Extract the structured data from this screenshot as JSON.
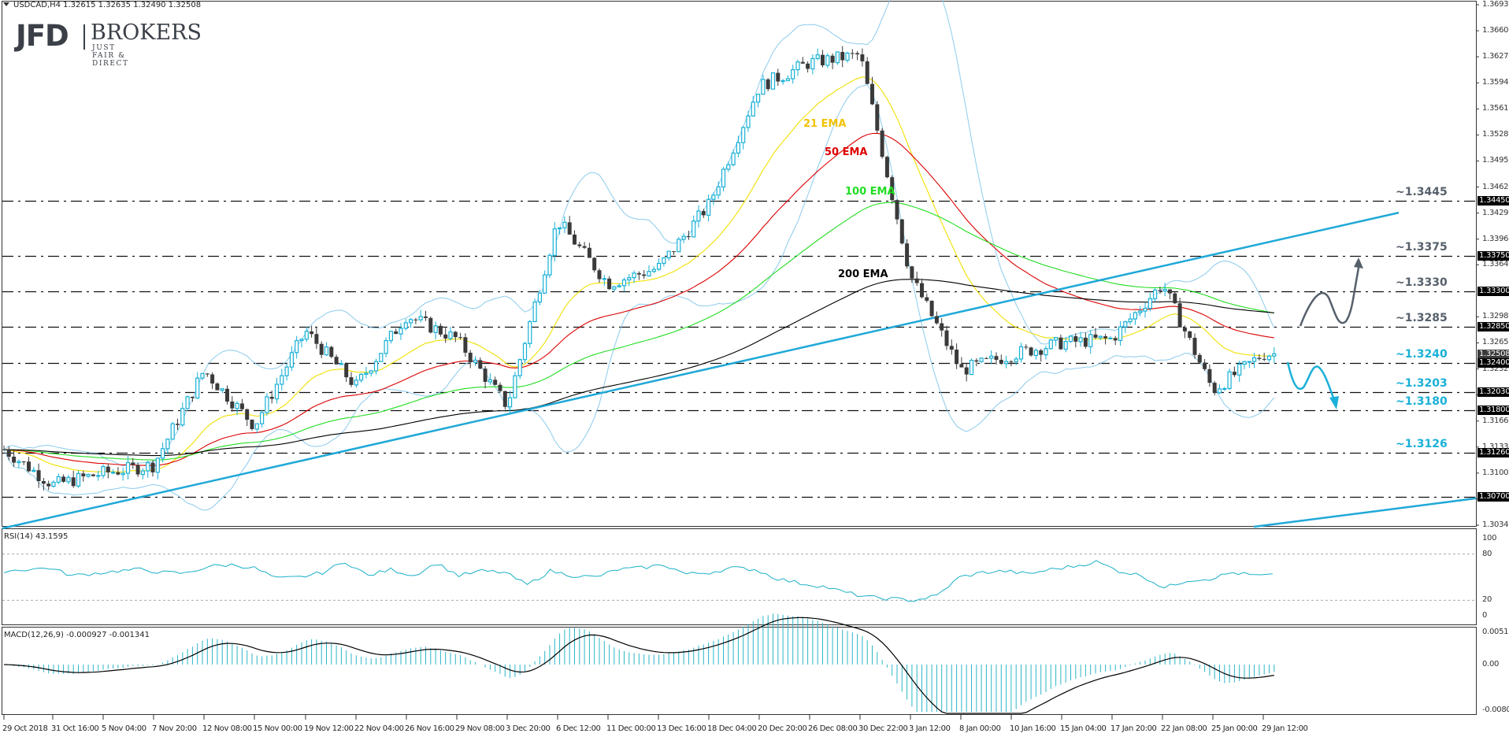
{
  "header": {
    "symbol_line": "USDCAD,H4  1.32615 1.32635 1.32490 1.32508",
    "symbol": "USDCAD",
    "timeframe": "H4",
    "ohlc": {
      "open": "1.32615",
      "high": "1.32635",
      "low": "1.32490",
      "close": "1.32508"
    }
  },
  "logo": {
    "brand": "JFD",
    "name": "BROKERS",
    "tagline": "JUST FAIR & DIRECT"
  },
  "colors": {
    "bull_candle": "#17b0d6",
    "bear_candle": "#3a3a3a",
    "ema21": "#f0e000",
    "ema50": "#dd0000",
    "ema100": "#22dd22",
    "ema200": "#000000",
    "bollinger": "#8ccbec",
    "trendline": "#1fa8d8",
    "resistance_label": "#56606b",
    "support_label": "#1ab0d8",
    "rsi_line": "#1ab0c8",
    "macd_hist": "#2bb6c8",
    "macd_signal": "#000000"
  },
  "chart_data": [
    {
      "type": "candlestick",
      "title": "USDCAD,H4",
      "xlabel": "",
      "ylabel": "",
      "ylim": [
        1.3034,
        1.36935
      ],
      "grid": false,
      "y_ticks": [
        "1.36935",
        "1.36605",
        "1.36275",
        "1.35945",
        "1.35615",
        "1.35285",
        "1.34955",
        "1.34625",
        "1.34295",
        "1.33965",
        "1.33640",
        "1.32980",
        "1.32650",
        "1.32320",
        "1.31990",
        "1.31660",
        "1.31330",
        "1.31000",
        "1.30670",
        "1.30340"
      ],
      "x_ticks": [
        "29 Oct 2018",
        "31 Oct 16:00",
        "5 Nov 04:00",
        "7 Nov 20:00",
        "12 Nov 08:00",
        "15 Nov 00:00",
        "19 Nov 12:00",
        "22 Nov 04:00",
        "26 Nov 16:00",
        "29 Nov 08:00",
        "3 Dec 20:00",
        "6 Dec 12:00",
        "11 Dec 00:00",
        "13 Dec 16:00",
        "18 Dec 04:00",
        "20 Dec 20:00",
        "26 Dec 08:00",
        "30 Dec 22:00",
        "3 Jan 12:00",
        "8 Jan 00:00",
        "10 Jan 16:00",
        "15 Jan 04:00",
        "17 Jan 20:00",
        "22 Jan 08:00",
        "25 Jan 00:00",
        "29 Jan 12:00"
      ],
      "price_tags": [
        {
          "value": "1.34450",
          "kind": "level"
        },
        {
          "value": "1.33750",
          "kind": "level"
        },
        {
          "value": "1.33300",
          "kind": "level"
        },
        {
          "value": "1.32850",
          "kind": "level"
        },
        {
          "value": "1.32508",
          "kind": "current"
        },
        {
          "value": "1.32400",
          "kind": "level"
        },
        {
          "value": "1.32030",
          "kind": "level"
        },
        {
          "value": "1.31800",
          "kind": "level"
        },
        {
          "value": "1.31260",
          "kind": "level"
        },
        {
          "value": "1.30700",
          "kind": "level"
        }
      ],
      "horizontal_levels": [
        {
          "label": "~1.3445",
          "value": 1.3445,
          "role": "resistance"
        },
        {
          "label": "~1.3375",
          "value": 1.3375,
          "role": "resistance"
        },
        {
          "label": "~1.3330",
          "value": 1.333,
          "role": "resistance"
        },
        {
          "label": "~1.3285",
          "value": 1.3285,
          "role": "resistance"
        },
        {
          "label": "~1.3240",
          "value": 1.324,
          "role": "support"
        },
        {
          "label": "~1.3203",
          "value": 1.3203,
          "role": "support"
        },
        {
          "label": "~1.3180",
          "value": 1.318,
          "role": "support"
        },
        {
          "label": "~1.3126",
          "value": 1.3126,
          "role": "support"
        },
        {
          "label": "",
          "value": 1.307,
          "role": "support"
        }
      ],
      "indicators": [
        {
          "name": "21 EMA",
          "color": "#f0e000"
        },
        {
          "name": "50 EMA",
          "color": "#dd0000"
        },
        {
          "name": "100 EMA",
          "color": "#22dd22"
        },
        {
          "name": "200 EMA",
          "color": "#000000"
        },
        {
          "name": "Bollinger Bands",
          "color": "#8ccbec"
        }
      ],
      "trendlines": [
        {
          "name": "uptrend line (main)",
          "from": [
            "29 Oct 2018",
            1.303
          ],
          "to": [
            "29 Jan 12:00",
            1.343
          ]
        },
        {
          "name": "lower parallel",
          "from": [
            "25 Jan 00:00",
            1.3034
          ],
          "to": [
            "29 Jan 12:00",
            1.3068
          ]
        }
      ],
      "annotations": [
        {
          "type": "arrow",
          "direction": "up",
          "path": "wave up from 1.3285 towards 1.3375",
          "color": "#56606b"
        },
        {
          "type": "arrow",
          "direction": "down",
          "path": "wave down from 1.3240 towards 1.3180",
          "color": "#1ab0d8"
        }
      ],
      "approx_close_path": [
        {
          "x": "29 Oct 2018",
          "close": 1.313
        },
        {
          "x": "31 Oct 16:00",
          "close": 1.3085
        },
        {
          "x": "5 Nov 04:00",
          "close": 1.31
        },
        {
          "x": "7 Nov 20:00",
          "close": 1.311
        },
        {
          "x": "12 Nov 08:00",
          "close": 1.323
        },
        {
          "x": "15 Nov 00:00",
          "close": 1.316
        },
        {
          "x": "19 Nov 12:00",
          "close": 1.328
        },
        {
          "x": "22 Nov 04:00",
          "close": 1.321
        },
        {
          "x": "26 Nov 16:00",
          "close": 1.33
        },
        {
          "x": "29 Nov 08:00",
          "close": 1.327
        },
        {
          "x": "3 Dec 20:00",
          "close": 1.3185
        },
        {
          "x": "6 Dec 12:00",
          "close": 1.342
        },
        {
          "x": "11 Dec 00:00",
          "close": 1.334
        },
        {
          "x": "13 Dec 16:00",
          "close": 1.336
        },
        {
          "x": "18 Dec 04:00",
          "close": 1.344
        },
        {
          "x": "20 Dec 20:00",
          "close": 1.359
        },
        {
          "x": "26 Dec 08:00",
          "close": 1.362
        },
        {
          "x": "30 Dec 22:00",
          "close": 1.363
        },
        {
          "x": "3 Jan 12:00",
          "close": 1.335
        },
        {
          "x": "8 Jan 00:00",
          "close": 1.323
        },
        {
          "x": "10 Jan 16:00",
          "close": 1.325
        },
        {
          "x": "15 Jan 04:00",
          "close": 1.3265
        },
        {
          "x": "17 Jan 20:00",
          "close": 1.327
        },
        {
          "x": "22 Jan 08:00",
          "close": 1.334
        },
        {
          "x": "25 Jan 00:00",
          "close": 1.3205
        },
        {
          "x": "29 Jan 12:00",
          "close": 1.3251
        }
      ]
    },
    {
      "type": "line",
      "title": "RSI(14) 43.1595",
      "indicator": "RSI",
      "period": 14,
      "last_value": 43.1595,
      "ylim": [
        0,
        100
      ],
      "y_ticks": [
        "100",
        "80",
        "20",
        "0"
      ],
      "reference_lines": [
        80,
        20
      ],
      "approx_values": [
        58,
        60,
        62,
        52,
        55,
        58,
        60,
        56,
        55,
        64,
        66,
        62,
        48,
        50,
        56,
        70,
        52,
        60,
        52,
        68,
        52,
        58,
        56,
        40,
        58,
        52,
        50,
        60,
        62,
        66,
        54,
        56,
        62,
        60,
        48,
        42,
        38,
        30,
        24,
        22,
        20,
        26,
        50,
        56,
        58,
        54,
        60,
        64,
        70,
        58,
        52,
        36,
        46,
        48,
        56,
        52
      ]
    },
    {
      "type": "bar+line",
      "title": "MACD(12,26,9) -0.000927 -0.001341",
      "indicator": "MACD",
      "params": [
        12,
        26,
        9
      ],
      "main_value": -0.000927,
      "signal_value": -0.001341,
      "ylim": [
        -0.008077,
        0.005122
      ],
      "y_ticks": [
        "0.005122",
        "0.00",
        "-0.008077"
      ]
    }
  ],
  "labels": {
    "ema21": "21 EMA",
    "ema50": "50 EMA",
    "ema100": "100 EMA",
    "ema200": "200 EMA",
    "rsi_title": "RSI(14) 43.1595",
    "macd_title": "MACD(12,26,9) -0.000927 -0.001341",
    "rsi_ticks": [
      "100",
      "80",
      "20",
      "0"
    ],
    "macd_ticks": [
      "0.005122",
      "0.00",
      "-0.008077"
    ]
  }
}
